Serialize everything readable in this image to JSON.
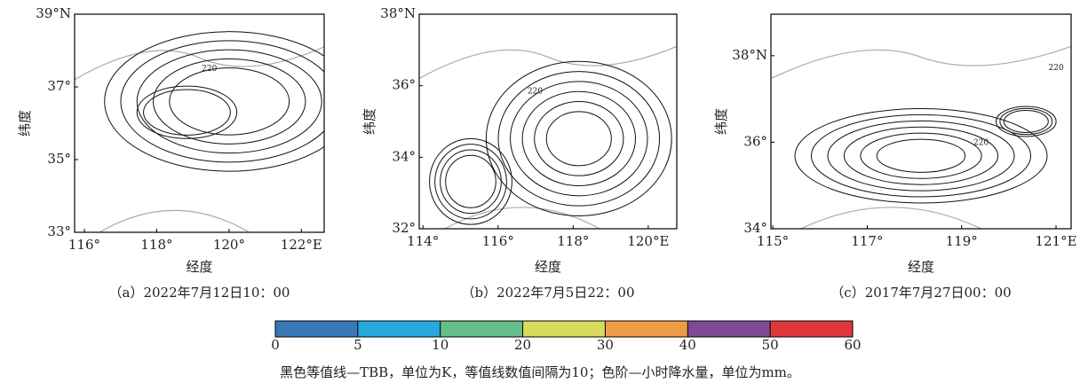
{
  "panels": [
    {
      "caption": "（a）2022年7月12日10：00",
      "xlabel": "经度",
      "ylabel": "纬度",
      "xlim": [
        115.73,
        122.63
      ],
      "ylim": [
        33,
        39
      ],
      "xticks": [
        {
          "value": 116,
          "label": "116°"
        },
        {
          "value": 118,
          "label": "118°"
        },
        {
          "value": 120,
          "label": "120°"
        },
        {
          "value": 122,
          "label": "122°E"
        }
      ],
      "yticks": [
        {
          "value": 33,
          "label": "33°"
        },
        {
          "value": 35,
          "label": "35°"
        },
        {
          "value": 37,
          "label": "37°"
        },
        {
          "value": 39,
          "label": "39°N"
        }
      ],
      "contour_labels": [
        "220"
      ]
    },
    {
      "caption": "（b）2022年7月5日22：00",
      "xlabel": "经度",
      "ylabel": "纬度",
      "xlim": [
        113.9,
        120.76
      ],
      "ylim": [
        32,
        38
      ],
      "xticks": [
        {
          "value": 114,
          "label": "114°"
        },
        {
          "value": 116,
          "label": "116°"
        },
        {
          "value": 118,
          "label": "118°"
        },
        {
          "value": 120,
          "label": "120°E"
        }
      ],
      "yticks": [
        {
          "value": 32,
          "label": "32°"
        },
        {
          "value": 34,
          "label": "34°"
        },
        {
          "value": 36,
          "label": "36°"
        },
        {
          "value": 38,
          "label": "38°N"
        }
      ],
      "contour_labels": [
        "220"
      ]
    },
    {
      "caption": "（c）2017年7月27日00：00",
      "xlabel": "经度",
      "ylabel": "纬度",
      "xlim": [
        114.96,
        121.32
      ],
      "ylim": [
        34,
        38.96
      ],
      "xticks": [
        {
          "value": 115,
          "label": "115°"
        },
        {
          "value": 117,
          "label": "117°"
        },
        {
          "value": 119,
          "label": "119°"
        },
        {
          "value": 121,
          "label": "121°E"
        }
      ],
      "yticks": [
        {
          "value": 34,
          "label": "34°"
        },
        {
          "value": 36,
          "label": "36°"
        },
        {
          "value": 38,
          "label": "38°N"
        }
      ],
      "contour_labels": [
        "220",
        "220"
      ]
    }
  ],
  "colorbar": {
    "ticks": [
      0,
      5,
      10,
      20,
      30,
      40,
      50,
      60
    ],
    "colors": [
      "#3a78b8",
      "#29a8dd",
      "#66bd87",
      "#d7dc5c",
      "#ee9d45",
      "#7e4a94",
      "#e0383a"
    ]
  },
  "note": "黑色等值线—TBB，单位为K，等值线数值间隔为10；色阶—小时降水量，单位为mm。"
}
